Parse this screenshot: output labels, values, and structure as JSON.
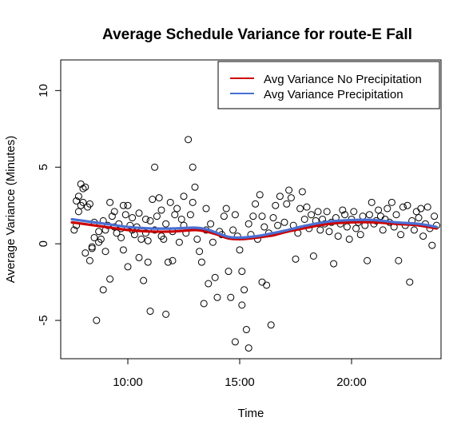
{
  "chart_data": {
    "type": "line",
    "title": "Average Schedule Variance for route-E Fall",
    "xlabel": "Time",
    "ylabel": "Average Variance (Minutes)",
    "x_unit": "time of day (hours)",
    "xlim": [
      7.0,
      24.0
    ],
    "ylim": [
      -7.5,
      12.0
    ],
    "x_ticks": [
      {
        "value": 10,
        "label": "10:00"
      },
      {
        "value": 15,
        "label": "15:00"
      },
      {
        "value": 20,
        "label": "20:00"
      }
    ],
    "y_ticks": [
      {
        "value": -5,
        "label": "-5"
      },
      {
        "value": 0,
        "label": "0"
      },
      {
        "value": 5,
        "label": "5"
      },
      {
        "value": 10,
        "label": "10"
      }
    ],
    "grid": false,
    "legend_position": "top-right",
    "series": [
      {
        "name": "Avg Variance No Precipitation",
        "color": "#cc0000",
        "x": [
          7.5,
          8.0,
          9.0,
          10.0,
          11.0,
          12.0,
          13.0,
          13.5,
          14.0,
          14.5,
          15.0,
          15.5,
          16.0,
          16.5,
          17.0,
          18.0,
          19.0,
          20.0,
          21.0,
          22.0,
          23.0,
          23.8
        ],
        "y": [
          1.4,
          1.3,
          1.1,
          0.9,
          0.8,
          0.8,
          0.9,
          0.8,
          0.6,
          0.35,
          0.3,
          0.35,
          0.45,
          0.55,
          0.75,
          1.05,
          1.3,
          1.4,
          1.4,
          1.3,
          1.2,
          1.0
        ]
      },
      {
        "name": "Avg Variance Precipitation",
        "color": "#4a6fd4",
        "x": [
          7.5,
          8.0,
          9.0,
          10.0,
          11.0,
          12.0,
          13.0,
          13.5,
          14.0,
          14.5,
          15.0,
          15.5,
          16.0,
          16.5,
          17.0,
          18.0,
          19.0,
          20.0,
          21.0,
          22.0,
          23.0,
          23.8
        ],
        "y": [
          1.6,
          1.5,
          1.3,
          1.1,
          1.0,
          1.0,
          1.05,
          0.95,
          0.7,
          0.45,
          0.4,
          0.45,
          0.55,
          0.7,
          0.85,
          1.2,
          1.45,
          1.55,
          1.55,
          1.4,
          1.3,
          1.1
        ]
      },
      {
        "name": "",
        "type": "scatter",
        "marker": "open-circle",
        "color": "#000000",
        "points": [
          [
            7.6,
            0.9
          ],
          [
            7.7,
            1.2
          ],
          [
            7.7,
            2.8
          ],
          [
            7.8,
            2.1
          ],
          [
            7.8,
            3.1
          ],
          [
            7.9,
            2.5
          ],
          [
            7.9,
            3.9
          ],
          [
            8.0,
            3.6
          ],
          [
            8.0,
            2.7
          ],
          [
            8.1,
            3.7
          ],
          [
            8.1,
            -0.6
          ],
          [
            8.2,
            2.4
          ],
          [
            8.3,
            2.6
          ],
          [
            8.3,
            -1.1
          ],
          [
            8.4,
            -0.3
          ],
          [
            8.4,
            -0.2
          ],
          [
            8.5,
            1.4
          ],
          [
            8.5,
            0.4
          ],
          [
            8.6,
            -5.0
          ],
          [
            8.7,
            0.1
          ],
          [
            8.7,
            0.8
          ],
          [
            8.8,
            0.3
          ],
          [
            8.9,
            1.5
          ],
          [
            8.9,
            -3.0
          ],
          [
            9.0,
            -0.5
          ],
          [
            9.0,
            0.9
          ],
          [
            9.1,
            1.2
          ],
          [
            9.2,
            2.7
          ],
          [
            9.2,
            -2.3
          ],
          [
            9.3,
            1.8
          ],
          [
            9.4,
            1.1
          ],
          [
            9.4,
            2.1
          ],
          [
            9.5,
            0.7
          ],
          [
            9.6,
            1.3
          ],
          [
            9.7,
            0.4
          ],
          [
            9.7,
            1.0
          ],
          [
            9.8,
            -0.4
          ],
          [
            9.8,
            2.5
          ],
          [
            9.9,
            1.9
          ],
          [
            10.0,
            2.5
          ],
          [
            10.0,
            -1.5
          ],
          [
            10.1,
            1.2
          ],
          [
            10.2,
            0.9
          ],
          [
            10.2,
            1.7
          ],
          [
            10.3,
            0.6
          ],
          [
            10.4,
            1.1
          ],
          [
            10.5,
            2.0
          ],
          [
            10.5,
            -0.9
          ],
          [
            10.6,
            0.3
          ],
          [
            10.7,
            -2.4
          ],
          [
            10.8,
            1.6
          ],
          [
            10.8,
            0.7
          ],
          [
            10.9,
            -1.2
          ],
          [
            10.9,
            0.2
          ],
          [
            11.0,
            -4.4
          ],
          [
            11.0,
            1.5
          ],
          [
            11.1,
            2.9
          ],
          [
            11.2,
            5.0
          ],
          [
            11.2,
            0.9
          ],
          [
            11.3,
            1.8
          ],
          [
            11.4,
            3.0
          ],
          [
            11.5,
            0.5
          ],
          [
            11.5,
            2.2
          ],
          [
            11.6,
            0.3
          ],
          [
            11.7,
            -4.6
          ],
          [
            11.7,
            1.3
          ],
          [
            11.8,
            -1.2
          ],
          [
            11.9,
            2.7
          ],
          [
            12.0,
            0.8
          ],
          [
            12.0,
            -1.1
          ],
          [
            12.1,
            1.9
          ],
          [
            12.2,
            2.3
          ],
          [
            12.3,
            0.1
          ],
          [
            12.4,
            1.6
          ],
          [
            12.5,
            1.2
          ],
          [
            12.5,
            3.1
          ],
          [
            12.6,
            0.7
          ],
          [
            12.7,
            6.8
          ],
          [
            12.8,
            1.9
          ],
          [
            12.9,
            5.0
          ],
          [
            12.9,
            2.7
          ],
          [
            13.0,
            3.7
          ],
          [
            13.1,
            0.3
          ],
          [
            13.2,
            -0.5
          ],
          [
            13.3,
            -1.2
          ],
          [
            13.4,
            -3.9
          ],
          [
            13.5,
            0.9
          ],
          [
            13.5,
            2.3
          ],
          [
            13.6,
            -2.6
          ],
          [
            13.7,
            1.3
          ],
          [
            13.8,
            0.1
          ],
          [
            13.9,
            -2.2
          ],
          [
            14.0,
            -3.5
          ],
          [
            14.1,
            0.8
          ],
          [
            14.2,
            0.6
          ],
          [
            14.3,
            1.8
          ],
          [
            14.4,
            2.3
          ],
          [
            14.5,
            -1.8
          ],
          [
            14.6,
            -3.5
          ],
          [
            14.7,
            0.9
          ],
          [
            14.8,
            -6.4
          ],
          [
            14.8,
            1.9
          ],
          [
            14.9,
            0.5
          ],
          [
            15.0,
            -0.4
          ],
          [
            15.1,
            -1.8
          ],
          [
            15.1,
            -4.0
          ],
          [
            15.2,
            -3.0
          ],
          [
            15.3,
            -5.6
          ],
          [
            15.4,
            -6.8
          ],
          [
            15.4,
            1.3
          ],
          [
            15.5,
            0.6
          ],
          [
            15.6,
            1.8
          ],
          [
            15.7,
            2.6
          ],
          [
            15.8,
            0.3
          ],
          [
            15.9,
            3.2
          ],
          [
            16.0,
            1.8
          ],
          [
            16.0,
            -2.5
          ],
          [
            16.1,
            1.1
          ],
          [
            16.2,
            -2.7
          ],
          [
            16.3,
            0.7
          ],
          [
            16.4,
            -5.3
          ],
          [
            16.5,
            1.7
          ],
          [
            16.6,
            2.5
          ],
          [
            16.7,
            1.2
          ],
          [
            16.8,
            3.1
          ],
          [
            17.0,
            1.4
          ],
          [
            17.1,
            2.6
          ],
          [
            17.2,
            3.5
          ],
          [
            17.3,
            3.0
          ],
          [
            17.4,
            1.2
          ],
          [
            17.5,
            -1.0
          ],
          [
            17.6,
            0.7
          ],
          [
            17.7,
            2.3
          ],
          [
            17.8,
            3.4
          ],
          [
            17.9,
            1.6
          ],
          [
            18.0,
            2.4
          ],
          [
            18.1,
            1.0
          ],
          [
            18.2,
            1.9
          ],
          [
            18.3,
            -0.8
          ],
          [
            18.4,
            1.5
          ],
          [
            18.5,
            2.1
          ],
          [
            18.6,
            0.9
          ],
          [
            18.7,
            1.6
          ],
          [
            18.8,
            1.3
          ],
          [
            18.9,
            2.1
          ],
          [
            19.0,
            0.8
          ],
          [
            19.1,
            1.4
          ],
          [
            19.2,
            -1.3
          ],
          [
            19.3,
            1.7
          ],
          [
            19.4,
            0.5
          ],
          [
            19.5,
            1.3
          ],
          [
            19.6,
            2.2
          ],
          [
            19.7,
            1.9
          ],
          [
            19.8,
            1.1
          ],
          [
            19.9,
            0.3
          ],
          [
            20.0,
            1.6
          ],
          [
            20.1,
            2.1
          ],
          [
            20.2,
            1.0
          ],
          [
            20.3,
            1.4
          ],
          [
            20.4,
            0.6
          ],
          [
            20.5,
            1.8
          ],
          [
            20.6,
            1.2
          ],
          [
            20.7,
            -1.1
          ],
          [
            20.8,
            1.9
          ],
          [
            20.9,
            2.7
          ],
          [
            21.0,
            1.3
          ],
          [
            21.1,
            1.5
          ],
          [
            21.2,
            2.2
          ],
          [
            21.3,
            1.8
          ],
          [
            21.4,
            0.9
          ],
          [
            21.5,
            1.6
          ],
          [
            21.6,
            2.3
          ],
          [
            21.7,
            1.4
          ],
          [
            21.8,
            2.7
          ],
          [
            21.9,
            1.1
          ],
          [
            22.0,
            1.9
          ],
          [
            22.1,
            -1.1
          ],
          [
            22.2,
            0.6
          ],
          [
            22.3,
            2.4
          ],
          [
            22.4,
            1.2
          ],
          [
            22.5,
            2.5
          ],
          [
            22.6,
            -2.5
          ],
          [
            22.7,
            1.5
          ],
          [
            22.8,
            0.9
          ],
          [
            22.9,
            2.1
          ],
          [
            23.0,
            1.7
          ],
          [
            23.1,
            2.3
          ],
          [
            23.2,
            0.5
          ],
          [
            23.3,
            1.3
          ],
          [
            23.4,
            2.4
          ],
          [
            23.5,
            1.0
          ],
          [
            23.6,
            -0.1
          ],
          [
            23.7,
            1.8
          ],
          [
            23.8,
            1.2
          ]
        ]
      }
    ]
  }
}
